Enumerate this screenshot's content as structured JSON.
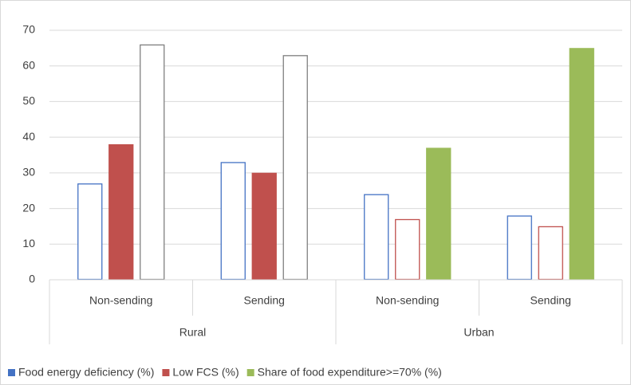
{
  "chart_data": {
    "type": "bar",
    "categories": [
      "Non-sending",
      "Sending",
      "Non-sending",
      "Sending"
    ],
    "groups": [
      "Rural",
      "Urban"
    ],
    "category_groups": [
      0,
      0,
      1,
      1
    ],
    "series": [
      {
        "name": "Food energy deficiency (%)",
        "color": "#4472c4",
        "values": [
          27,
          33,
          24,
          18
        ],
        "filled": [
          false,
          false,
          false,
          false
        ],
        "edge_colors": [
          "#4472c4",
          "#4472c4",
          "#4472c4",
          "#4472c4"
        ]
      },
      {
        "name": "Low FCS (%)",
        "color": "#c0504d",
        "values": [
          38,
          30,
          17,
          15
        ],
        "filled": [
          true,
          true,
          false,
          false
        ],
        "edge_colors": [
          "#c0504d",
          "#c0504d",
          "#c0504d",
          "#c0504d"
        ]
      },
      {
        "name": "Share of food expenditure>=70% (%)",
        "color": "#9bbb59",
        "values": [
          66,
          63,
          37,
          65
        ],
        "filled": [
          false,
          false,
          true,
          true
        ],
        "edge_colors": [
          "#7f7f7f",
          "#7f7f7f",
          "#9bbb59",
          "#9bbb59"
        ]
      }
    ],
    "ylim": [
      0,
      70
    ],
    "yticks": [
      0,
      10,
      20,
      30,
      40,
      50,
      60,
      70
    ],
    "grid": true,
    "legend": "bottom-left"
  }
}
